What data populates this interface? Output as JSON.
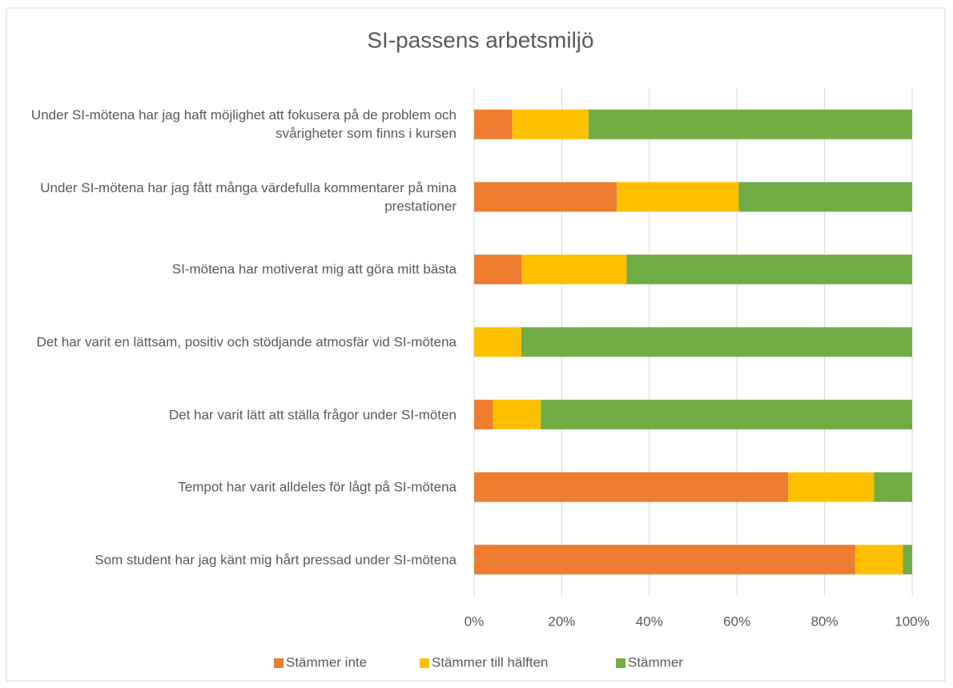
{
  "chart_data": {
    "type": "stacked_barh",
    "title": "SI-passens arbetsmiljö",
    "categories": [
      "Under SI-mötena har jag haft möjlighet att fokusera på de problem och svårigheter som finns i kursen",
      "Under SI-mötena har jag fått många värdefulla kommentarer på mina prestationer",
      "SI-mötena har motiverat mig att göra mitt bästa",
      "Det har varit en lättsam, positiv och stödjande atmosfär vid SI-mötena",
      "Det har varit lätt att ställa frågor under SI-möten",
      "Tempot har varit alldeles för lågt på SI-mötena",
      "Som student har jag känt mig hårt pressad under SI-mötena"
    ],
    "series": [
      {
        "name": "Stämmer inte",
        "color": "#ed7d31",
        "values": [
          8.7,
          32.6,
          10.9,
          0,
          4.3,
          71.7,
          87.0
        ]
      },
      {
        "name": "Stämmer till hälften",
        "color": "#ffc000",
        "values": [
          17.4,
          27.8,
          23.9,
          10.8,
          10.9,
          19.6,
          10.9
        ]
      },
      {
        "name": "Stämmer",
        "color": "#70ad47",
        "values": [
          73.9,
          39.6,
          65.2,
          89.2,
          84.8,
          8.7,
          2.1
        ]
      }
    ],
    "xlim": [
      0,
      100
    ],
    "xticks": [
      {
        "value": 0,
        "label": "0%"
      },
      {
        "value": 20,
        "label": "20%"
      },
      {
        "value": 40,
        "label": "40%"
      },
      {
        "value": 60,
        "label": "60%"
      },
      {
        "value": 80,
        "label": "80%"
      },
      {
        "value": 100,
        "label": "100%"
      }
    ],
    "grid": true,
    "legend": "bottom"
  }
}
